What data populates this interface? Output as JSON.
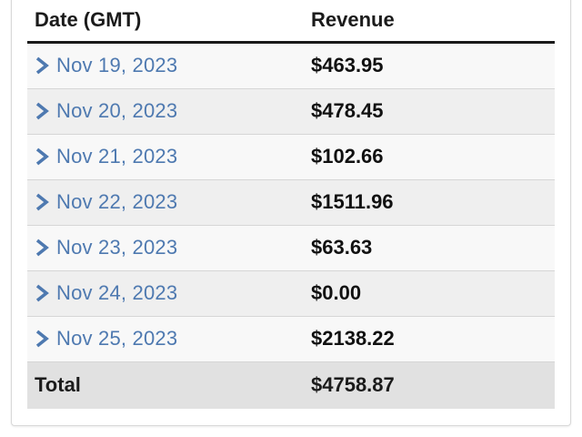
{
  "table": {
    "headers": {
      "date": "Date (GMT)",
      "revenue": "Revenue"
    },
    "rows": [
      {
        "date": "Nov 19, 2023",
        "revenue": "$463.95"
      },
      {
        "date": "Nov 20, 2023",
        "revenue": "$478.45"
      },
      {
        "date": "Nov 21, 2023",
        "revenue": "$102.66"
      },
      {
        "date": "Nov 22, 2023",
        "revenue": "$1511.96"
      },
      {
        "date": "Nov 23, 2023",
        "revenue": "$63.63"
      },
      {
        "date": "Nov 24, 2023",
        "revenue": "$0.00"
      },
      {
        "date": "Nov 25, 2023",
        "revenue": "$2138.22"
      }
    ],
    "total": {
      "label": "Total",
      "revenue": "$4758.87"
    }
  },
  "icons": {
    "row_expand": "chevron-right-icon"
  },
  "colors": {
    "link": "#4e79b0",
    "header_rule": "#1a1a1a",
    "row_odd": "#f8f8f8",
    "row_even": "#efefef",
    "total_bg": "#e1e1e1"
  }
}
